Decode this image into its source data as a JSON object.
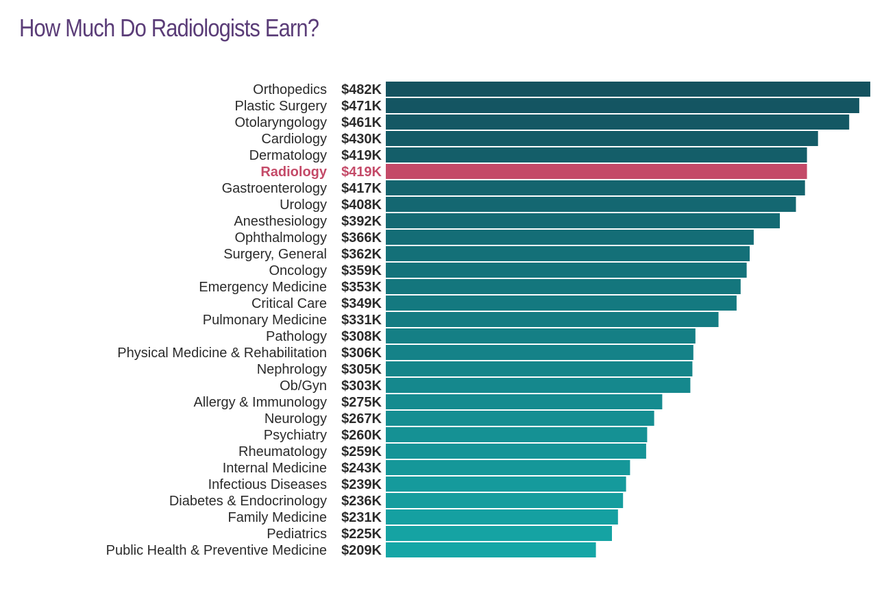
{
  "chart_data": {
    "type": "bar",
    "orientation": "horizontal",
    "title": "How Much Do Radiologists Earn?",
    "xlabel": "",
    "ylabel": "",
    "grid": false,
    "legend": "none",
    "xlim": [
      0,
      482
    ],
    "categories": [
      "Orthopedics",
      "Plastic Surgery",
      "Otolaryngology",
      "Cardiology",
      "Dermatology",
      "Radiology",
      "Gastroenterology",
      "Urology",
      "Anesthesiology",
      "Ophthalmology",
      "Surgery, General",
      "Oncology",
      "Emergency Medicine",
      "Critical Care",
      "Pulmonary Medicine",
      "Pathology",
      "Physical Medicine & Rehabilitation",
      "Nephrology",
      "Ob/Gyn",
      "Allergy & Immunology",
      "Neurology",
      "Psychiatry",
      "Rheumatology",
      "Internal Medicine",
      "Infectious Diseases",
      "Diabetes & Endocrinology",
      "Family Medicine",
      "Pediatrics",
      "Public Health & Preventive Medicine"
    ],
    "values": [
      482,
      471,
      461,
      430,
      419,
      419,
      417,
      408,
      392,
      366,
      362,
      359,
      353,
      349,
      331,
      308,
      306,
      305,
      303,
      275,
      267,
      260,
      259,
      243,
      239,
      236,
      231,
      225,
      209
    ],
    "value_labels": [
      "$482K",
      "$471K",
      "$461K",
      "$430K",
      "$419K",
      "$419K",
      "$417K",
      "$408K",
      "$392K",
      "$366K",
      "$362K",
      "$359K",
      "$353K",
      "$349K",
      "$331K",
      "$308K",
      "$306K",
      "$305K",
      "$303K",
      "$275K",
      "$267K",
      "$260K",
      "$259K",
      "$243K",
      "$239K",
      "$236K",
      "$231K",
      "$225K",
      "$209K"
    ],
    "highlight": "Radiology",
    "colors": {
      "bar_start": "#14525f",
      "bar_end": "#15a6a6",
      "highlight": "#c44a68",
      "title": "#5b3d78",
      "label": "#2b2b2b"
    }
  }
}
